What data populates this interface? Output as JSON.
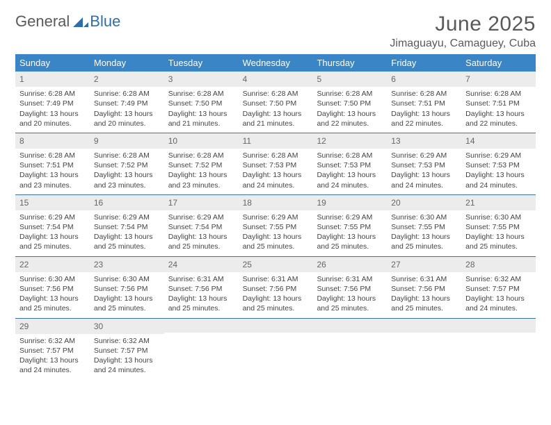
{
  "brand": {
    "part1": "General",
    "part2": "Blue"
  },
  "title": "June 2025",
  "location": "Jimaguayu, Camaguey, Cuba",
  "colors": {
    "header_bg": "#3a85c6",
    "rule": "#3a72a8",
    "num_bg": "#ececec",
    "text": "#444444",
    "title": "#5a5a5a"
  },
  "day_names": [
    "Sunday",
    "Monday",
    "Tuesday",
    "Wednesday",
    "Thursday",
    "Friday",
    "Saturday"
  ],
  "weeks": [
    [
      {
        "n": "1",
        "sr": "Sunrise: 6:28 AM",
        "ss": "Sunset: 7:49 PM",
        "d1": "Daylight: 13 hours",
        "d2": "and 20 minutes."
      },
      {
        "n": "2",
        "sr": "Sunrise: 6:28 AM",
        "ss": "Sunset: 7:49 PM",
        "d1": "Daylight: 13 hours",
        "d2": "and 20 minutes."
      },
      {
        "n": "3",
        "sr": "Sunrise: 6:28 AM",
        "ss": "Sunset: 7:50 PM",
        "d1": "Daylight: 13 hours",
        "d2": "and 21 minutes."
      },
      {
        "n": "4",
        "sr": "Sunrise: 6:28 AM",
        "ss": "Sunset: 7:50 PM",
        "d1": "Daylight: 13 hours",
        "d2": "and 21 minutes."
      },
      {
        "n": "5",
        "sr": "Sunrise: 6:28 AM",
        "ss": "Sunset: 7:50 PM",
        "d1": "Daylight: 13 hours",
        "d2": "and 22 minutes."
      },
      {
        "n": "6",
        "sr": "Sunrise: 6:28 AM",
        "ss": "Sunset: 7:51 PM",
        "d1": "Daylight: 13 hours",
        "d2": "and 22 minutes."
      },
      {
        "n": "7",
        "sr": "Sunrise: 6:28 AM",
        "ss": "Sunset: 7:51 PM",
        "d1": "Daylight: 13 hours",
        "d2": "and 22 minutes."
      }
    ],
    [
      {
        "n": "8",
        "sr": "Sunrise: 6:28 AM",
        "ss": "Sunset: 7:51 PM",
        "d1": "Daylight: 13 hours",
        "d2": "and 23 minutes."
      },
      {
        "n": "9",
        "sr": "Sunrise: 6:28 AM",
        "ss": "Sunset: 7:52 PM",
        "d1": "Daylight: 13 hours",
        "d2": "and 23 minutes."
      },
      {
        "n": "10",
        "sr": "Sunrise: 6:28 AM",
        "ss": "Sunset: 7:52 PM",
        "d1": "Daylight: 13 hours",
        "d2": "and 23 minutes."
      },
      {
        "n": "11",
        "sr": "Sunrise: 6:28 AM",
        "ss": "Sunset: 7:53 PM",
        "d1": "Daylight: 13 hours",
        "d2": "and 24 minutes."
      },
      {
        "n": "12",
        "sr": "Sunrise: 6:28 AM",
        "ss": "Sunset: 7:53 PM",
        "d1": "Daylight: 13 hours",
        "d2": "and 24 minutes."
      },
      {
        "n": "13",
        "sr": "Sunrise: 6:29 AM",
        "ss": "Sunset: 7:53 PM",
        "d1": "Daylight: 13 hours",
        "d2": "and 24 minutes."
      },
      {
        "n": "14",
        "sr": "Sunrise: 6:29 AM",
        "ss": "Sunset: 7:53 PM",
        "d1": "Daylight: 13 hours",
        "d2": "and 24 minutes."
      }
    ],
    [
      {
        "n": "15",
        "sr": "Sunrise: 6:29 AM",
        "ss": "Sunset: 7:54 PM",
        "d1": "Daylight: 13 hours",
        "d2": "and 25 minutes."
      },
      {
        "n": "16",
        "sr": "Sunrise: 6:29 AM",
        "ss": "Sunset: 7:54 PM",
        "d1": "Daylight: 13 hours",
        "d2": "and 25 minutes."
      },
      {
        "n": "17",
        "sr": "Sunrise: 6:29 AM",
        "ss": "Sunset: 7:54 PM",
        "d1": "Daylight: 13 hours",
        "d2": "and 25 minutes."
      },
      {
        "n": "18",
        "sr": "Sunrise: 6:29 AM",
        "ss": "Sunset: 7:55 PM",
        "d1": "Daylight: 13 hours",
        "d2": "and 25 minutes."
      },
      {
        "n": "19",
        "sr": "Sunrise: 6:29 AM",
        "ss": "Sunset: 7:55 PM",
        "d1": "Daylight: 13 hours",
        "d2": "and 25 minutes."
      },
      {
        "n": "20",
        "sr": "Sunrise: 6:30 AM",
        "ss": "Sunset: 7:55 PM",
        "d1": "Daylight: 13 hours",
        "d2": "and 25 minutes."
      },
      {
        "n": "21",
        "sr": "Sunrise: 6:30 AM",
        "ss": "Sunset: 7:55 PM",
        "d1": "Daylight: 13 hours",
        "d2": "and 25 minutes."
      }
    ],
    [
      {
        "n": "22",
        "sr": "Sunrise: 6:30 AM",
        "ss": "Sunset: 7:56 PM",
        "d1": "Daylight: 13 hours",
        "d2": "and 25 minutes."
      },
      {
        "n": "23",
        "sr": "Sunrise: 6:30 AM",
        "ss": "Sunset: 7:56 PM",
        "d1": "Daylight: 13 hours",
        "d2": "and 25 minutes."
      },
      {
        "n": "24",
        "sr": "Sunrise: 6:31 AM",
        "ss": "Sunset: 7:56 PM",
        "d1": "Daylight: 13 hours",
        "d2": "and 25 minutes."
      },
      {
        "n": "25",
        "sr": "Sunrise: 6:31 AM",
        "ss": "Sunset: 7:56 PM",
        "d1": "Daylight: 13 hours",
        "d2": "and 25 minutes."
      },
      {
        "n": "26",
        "sr": "Sunrise: 6:31 AM",
        "ss": "Sunset: 7:56 PM",
        "d1": "Daylight: 13 hours",
        "d2": "and 25 minutes."
      },
      {
        "n": "27",
        "sr": "Sunrise: 6:31 AM",
        "ss": "Sunset: 7:56 PM",
        "d1": "Daylight: 13 hours",
        "d2": "and 25 minutes."
      },
      {
        "n": "28",
        "sr": "Sunrise: 6:32 AM",
        "ss": "Sunset: 7:57 PM",
        "d1": "Daylight: 13 hours",
        "d2": "and 24 minutes."
      }
    ],
    [
      {
        "n": "29",
        "sr": "Sunrise: 6:32 AM",
        "ss": "Sunset: 7:57 PM",
        "d1": "Daylight: 13 hours",
        "d2": "and 24 minutes."
      },
      {
        "n": "30",
        "sr": "Sunrise: 6:32 AM",
        "ss": "Sunset: 7:57 PM",
        "d1": "Daylight: 13 hours",
        "d2": "and 24 minutes."
      },
      {
        "empty": true
      },
      {
        "empty": true
      },
      {
        "empty": true
      },
      {
        "empty": true
      },
      {
        "empty": true
      }
    ]
  ]
}
